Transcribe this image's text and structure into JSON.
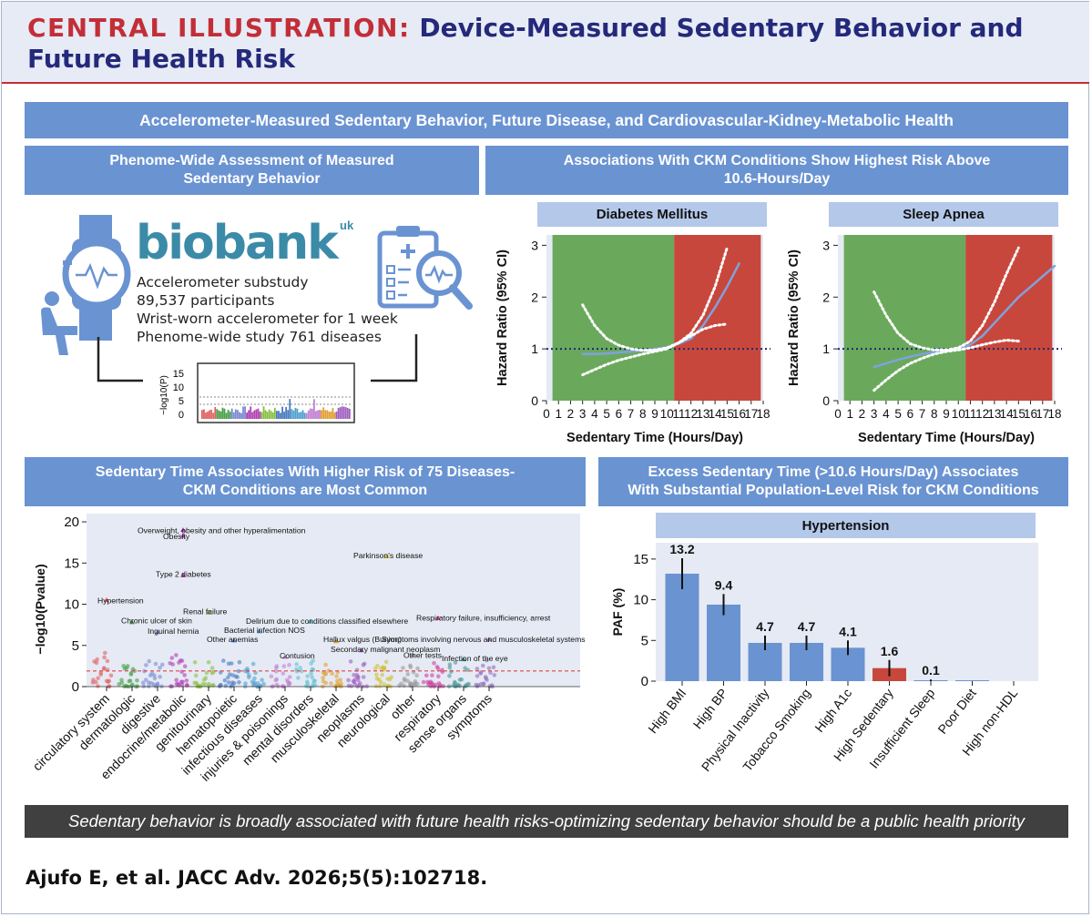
{
  "header": {
    "label": "CENTRAL ILLUSTRATION:",
    "title_line1": "Device-Measured Sedentary Behavior and",
    "title_line2": "Future Health Risk"
  },
  "main_banner": "Accelerometer-Measured Sedentary Behavior, Future Disease, and Cardiovascular-Kidney-Metabolic Health",
  "panel_phewas": {
    "title_line1": "Phenome-Wide Assessment of Measured",
    "title_line2": "Sedentary Behavior",
    "logo_text": "biobank",
    "logo_uk": "uk",
    "lines": [
      "Accelerometer substudy",
      "89,537 participants",
      "Wrist-worn accelerometer for 1 week",
      "Phenome-wide study 761 diseases"
    ],
    "mini_ylabel": "−log10(P)",
    "mini_ticks": [
      "15",
      "10",
      "5",
      "0"
    ]
  },
  "panel_ckm": {
    "title_line1": "Associations With CKM Conditions Show Highest Risk Above",
    "title_line2": "10.6-Hours/Day",
    "ylabel": "Hazard Ratio (95% CI)",
    "xlabel": "Sedentary Time (Hours/Day)"
  },
  "panel_diseases": {
    "title_line1": "Sedentary Time Associates With Higher Risk of 75 Diseases-",
    "title_line2": "CKM Conditions are Most Common"
  },
  "panel_paf": {
    "title_line1": "Excess Sedentary Time (>10.6 Hours/Day) Associates",
    "title_line2": "With Substantial Population-Level Risk for CKM Conditions"
  },
  "footer": "Sedentary behavior is broadly associated with future health risks-optimizing sedentary behavior should be a public health priority",
  "citation": "Ajufo E, et al. JACC Adv. 2026;5(5):102718.",
  "chart_data": [
    {
      "type": "line",
      "title": "Diabetes Mellitus",
      "xlabel": "Sedentary Time (Hours/Day)",
      "ylabel": "Hazard Ratio (95% CI)",
      "xlim": [
        0,
        18
      ],
      "ylim": [
        0,
        3.2
      ],
      "xticks": [
        "0",
        "1",
        "2",
        "3",
        "4",
        "5",
        "6",
        "7",
        "8",
        "9",
        "10",
        "11",
        "12",
        "13",
        "14",
        "15",
        "16",
        "17",
        "18"
      ],
      "yticks": [
        "0",
        "1",
        "2",
        "3"
      ],
      "threshold": 10.6,
      "reference_line": 1,
      "series": [
        {
          "name": "HR",
          "x": [
            3,
            4,
            5,
            6,
            7,
            8,
            9,
            10,
            11,
            12,
            13,
            14,
            15,
            16
          ],
          "y": [
            0.9,
            0.9,
            0.91,
            0.93,
            0.95,
            0.97,
            1.0,
            1.03,
            1.1,
            1.2,
            1.45,
            1.8,
            2.2,
            2.65
          ]
        },
        {
          "name": "upper",
          "x": [
            3,
            4,
            5,
            6,
            7,
            8,
            9,
            10,
            11,
            12,
            13,
            14,
            15
          ],
          "y": [
            1.85,
            1.45,
            1.2,
            1.07,
            1.0,
            0.97,
            0.98,
            1.02,
            1.12,
            1.3,
            1.65,
            2.2,
            2.95
          ]
        },
        {
          "name": "lower",
          "x": [
            3,
            4,
            5,
            6,
            7,
            8,
            9,
            10,
            11,
            12,
            13,
            14,
            15
          ],
          "y": [
            0.5,
            0.6,
            0.7,
            0.78,
            0.84,
            0.9,
            0.95,
            1.0,
            1.12,
            1.25,
            1.38,
            1.45,
            1.48
          ]
        }
      ]
    },
    {
      "type": "line",
      "title": "Sleep Apnea",
      "xlabel": "Sedentary Time (Hours/Day)",
      "ylabel": "Hazard Ratio (95% CI)",
      "xlim": [
        0,
        18
      ],
      "ylim": [
        0,
        3.2
      ],
      "xticks": [
        "0",
        "1",
        "2",
        "3",
        "4",
        "5",
        "6",
        "7",
        "8",
        "9",
        "10",
        "11",
        "12",
        "13",
        "14",
        "15",
        "16",
        "17",
        "18"
      ],
      "yticks": [
        "0",
        "1",
        "2",
        "3"
      ],
      "threshold": 10.6,
      "reference_line": 1,
      "series": [
        {
          "name": "HR",
          "x": [
            3,
            4,
            5,
            6,
            7,
            8,
            9,
            10,
            11,
            12,
            13,
            14,
            15,
            16,
            17,
            18
          ],
          "y": [
            0.65,
            0.72,
            0.79,
            0.85,
            0.9,
            0.94,
            0.98,
            1.0,
            1.08,
            1.25,
            1.5,
            1.75,
            2.0,
            2.2,
            2.4,
            2.6
          ]
        },
        {
          "name": "upper",
          "x": [
            3,
            4,
            5,
            6,
            7,
            8,
            9,
            10,
            11,
            12,
            13,
            14,
            15
          ],
          "y": [
            2.1,
            1.65,
            1.3,
            1.1,
            1.02,
            0.98,
            0.98,
            1.02,
            1.15,
            1.45,
            1.9,
            2.45,
            2.95
          ]
        },
        {
          "name": "lower",
          "x": [
            3,
            4,
            5,
            6,
            7,
            8,
            9,
            10,
            11,
            12,
            13,
            14,
            15
          ],
          "y": [
            0.2,
            0.4,
            0.58,
            0.72,
            0.82,
            0.9,
            0.95,
            0.98,
            1.02,
            1.08,
            1.13,
            1.17,
            1.15
          ]
        }
      ]
    },
    {
      "type": "scatter",
      "title": "",
      "ylabel": "−log10(Pvalue)",
      "ylim": [
        0,
        21
      ],
      "yticks": [
        "0",
        "5",
        "10",
        "15",
        "20"
      ],
      "categories": [
        "circulatory system",
        "dermatologic",
        "digestive",
        "endocrine/metabolic",
        "genitourinary",
        "hematopoietic",
        "infectious diseases",
        "injuries & poisonings",
        "mental disorders",
        "musculoskeletal",
        "neoplasms",
        "neurological",
        "other",
        "respiratory",
        "sense organs",
        "symptoms"
      ],
      "colors": [
        "#e06060",
        "#4aa04a",
        "#7a8ad0",
        "#b040b0",
        "#88c040",
        "#4a7ac0",
        "#50a0d0",
        "#c080d0",
        "#60c0d0",
        "#e0a030",
        "#a060c0",
        "#d0c030",
        "#999999",
        "#d040a0",
        "#4a9a9a",
        "#9070c0"
      ],
      "significance_line": 1.9,
      "annotations": [
        {
          "label": "Overweight, obesity and other hyperalimentation",
          "category": "endocrine/metabolic",
          "y": 19.0
        },
        {
          "label": "Obesity",
          "category": "endocrine/metabolic",
          "y": 18.3
        },
        {
          "label": "Parkinson's disease",
          "category": "neurological",
          "y": 15.8
        },
        {
          "label": "Type 2 diabetes",
          "category": "endocrine/metabolic",
          "y": 13.5
        },
        {
          "label": "Hypertension",
          "category": "circulatory system",
          "y": 10.5
        },
        {
          "label": "Renal failure",
          "category": "genitourinary",
          "y": 9.0
        },
        {
          "label": "Chronic ulcer of skin",
          "category": "dermatologic",
          "y": 7.8
        },
        {
          "label": "Delirium due to conditions classified elsewhere",
          "category": "mental disorders",
          "y": 7.9
        },
        {
          "label": "Respiratory failure, insufficiency, arrest",
          "category": "respiratory",
          "y": 8.3
        },
        {
          "label": "Inguinal hernia",
          "category": "digestive",
          "y": 6.6
        },
        {
          "label": "Bacterial infection NOS",
          "category": "infectious diseases",
          "y": 6.7
        },
        {
          "label": "Other anemias",
          "category": "hematopoietic",
          "y": 5.6
        },
        {
          "label": "Hallux valgus (Bunion)",
          "category": "musculoskeletal",
          "y": 5.5
        },
        {
          "label": "Symptoms involving nervous and musculoskeletal systems",
          "category": "symptoms",
          "y": 5.7
        },
        {
          "label": "Secondary malignant neoplasm",
          "category": "neoplasms",
          "y": 4.4
        },
        {
          "label": "Contusion",
          "category": "injuries & poisonings",
          "y": 3.6
        },
        {
          "label": "Other tests",
          "category": "other",
          "y": 3.8
        },
        {
          "label": "Infection of the eye",
          "category": "sense organs",
          "y": 3.3
        }
      ]
    },
    {
      "type": "bar",
      "title": "Hypertension",
      "ylabel": "PAF (%)",
      "ylim": [
        0,
        17
      ],
      "yticks": [
        "0",
        "5",
        "10",
        "15"
      ],
      "categories": [
        "High BMI",
        "High BP",
        "Physical Inactivity",
        "Tobacco Smoking",
        "High A1c",
        "High Sedentary",
        "Insufficient Sleep",
        "Poor Diet",
        "High non-HDL"
      ],
      "values": [
        13.2,
        9.4,
        4.7,
        4.7,
        4.1,
        1.6,
        0.1,
        0.1,
        0
      ],
      "errors": [
        1.9,
        1.3,
        0.9,
        0.9,
        0.9,
        1.0,
        0.1,
        0,
        0
      ],
      "value_labels": [
        "13.2",
        "9.4",
        "4.7",
        "4.7",
        "4.1",
        "1.6",
        "0.1",
        "",
        ""
      ],
      "highlight": "High Sedentary",
      "colors": {
        "default": "#6a93d2",
        "highlight": "#c8473c"
      }
    }
  ]
}
